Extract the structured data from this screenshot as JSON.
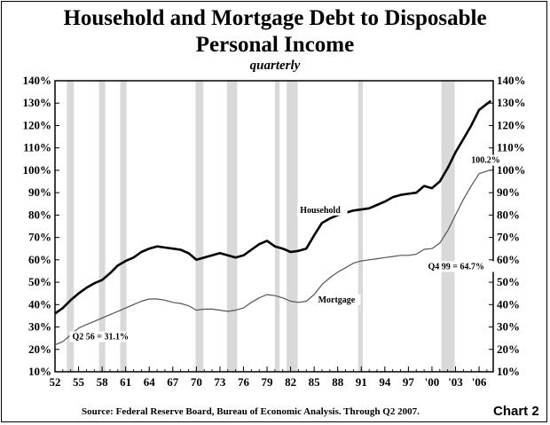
{
  "chart_data": {
    "type": "line",
    "title": "Household and Mortgage Debt to Disposable",
    "title_line2": "Personal Income",
    "subtitle": "quarterly",
    "source": "Source:  Federal Reserve Board, Bureau of Economic Analysis.  Through Q2 2007.",
    "chart_label": "Chart 2",
    "xlim": [
      1952,
      2007.8
    ],
    "ylim": [
      10,
      140
    ],
    "grid": false,
    "x_tick_labels": [
      {
        "x": 1952,
        "label": "52"
      },
      {
        "x": 1955,
        "label": "55"
      },
      {
        "x": 1958,
        "label": "58"
      },
      {
        "x": 1961,
        "label": "61"
      },
      {
        "x": 1964,
        "label": "64"
      },
      {
        "x": 1967,
        "label": "67"
      },
      {
        "x": 1970,
        "label": "70"
      },
      {
        "x": 1973,
        "label": "73"
      },
      {
        "x": 1976,
        "label": "76"
      },
      {
        "x": 1979,
        "label": "79"
      },
      {
        "x": 1982,
        "label": "82"
      },
      {
        "x": 1985,
        "label": "85"
      },
      {
        "x": 1988,
        "label": "88"
      },
      {
        "x": 1991,
        "label": "91"
      },
      {
        "x": 1994,
        "label": "94"
      },
      {
        "x": 1997,
        "label": "97"
      },
      {
        "x": 2000,
        "label": "'00"
      },
      {
        "x": 2003,
        "label": "'03"
      },
      {
        "x": 2006,
        "label": "'06"
      }
    ],
    "y_tick_labels": [
      "10%",
      "20%",
      "30%",
      "40%",
      "50%",
      "60%",
      "70%",
      "80%",
      "90%",
      "100%",
      "110%",
      "120%",
      "130%",
      "140%"
    ],
    "y_ticks": [
      10,
      20,
      30,
      40,
      50,
      60,
      70,
      80,
      90,
      100,
      110,
      120,
      130,
      140
    ],
    "recessions": [
      [
        1953.5,
        1954.4
      ],
      [
        1957.6,
        1958.4
      ],
      [
        1960.3,
        1961.1
      ],
      [
        1969.9,
        1970.9
      ],
      [
        1973.9,
        1975.2
      ],
      [
        1980.0,
        1980.6
      ],
      [
        1981.5,
        1982.9
      ],
      [
        1990.6,
        1991.2
      ],
      [
        2001.2,
        2002.9
      ]
    ],
    "series": [
      {
        "name": "Household",
        "color": "#000000",
        "x": [
          1952,
          1953,
          1954,
          1955,
          1956,
          1957,
          1958,
          1959,
          1960,
          1961,
          1962,
          1963,
          1964,
          1965,
          1966,
          1967,
          1968,
          1969,
          1970,
          1971,
          1972,
          1973,
          1974,
          1975,
          1976,
          1977,
          1978,
          1979,
          1980,
          1981,
          1982,
          1983,
          1984,
          1985,
          1986,
          1987,
          1988,
          1989,
          1990,
          1991,
          1992,
          1993,
          1994,
          1995,
          1996,
          1997,
          1998,
          1999,
          2000,
          2001,
          2002,
          2003,
          2004,
          2005,
          2006,
          2007.5
        ],
        "values": [
          36,
          38.5,
          42,
          45,
          47.5,
          49.5,
          51,
          54,
          57.5,
          59.5,
          61,
          63.5,
          65,
          66,
          65.5,
          65,
          64.5,
          63,
          60,
          61,
          62,
          63,
          62,
          61,
          62,
          64.5,
          67,
          68.5,
          66,
          65,
          63.5,
          64,
          65,
          71,
          76.5,
          78.5,
          80,
          81,
          82,
          82.5,
          83,
          84.5,
          86,
          88,
          89,
          89.5,
          90,
          93,
          92,
          95,
          101,
          108,
          114,
          120,
          127,
          131
        ]
      },
      {
        "name": "Mortgage",
        "color": "#555555",
        "x": [
          1952,
          1953,
          1954,
          1955,
          1956,
          1957,
          1958,
          1959,
          1960,
          1961,
          1962,
          1963,
          1964,
          1965,
          1966,
          1967,
          1968,
          1969,
          1970,
          1971,
          1972,
          1973,
          1974,
          1975,
          1976,
          1977,
          1978,
          1979,
          1980,
          1981,
          1982,
          1983,
          1984,
          1985,
          1986,
          1987,
          1988,
          1989,
          1990,
          1991,
          1992,
          1993,
          1994,
          1995,
          1996,
          1997,
          1998,
          1999,
          2000,
          2001,
          2002,
          2003,
          2004,
          2005,
          2006,
          2007.5
        ],
        "values": [
          22,
          23.5,
          26.5,
          29.5,
          31.1,
          32.5,
          34,
          35.5,
          37,
          38.5,
          40,
          41.5,
          42.5,
          42.5,
          42,
          41,
          40.5,
          39.5,
          37.5,
          38,
          38,
          37.5,
          37,
          37.5,
          38.5,
          41,
          43,
          44.5,
          44,
          43,
          41.5,
          41,
          41.5,
          44.5,
          49,
          52,
          54.5,
          56.5,
          58.5,
          59.5,
          60,
          60.5,
          61,
          61.5,
          62,
          62,
          62.5,
          64.7,
          65,
          67.5,
          73,
          80,
          87,
          93,
          98.5,
          100.2
        ]
      }
    ],
    "annotations": [
      {
        "text": "Household",
        "x": 1983.2,
        "y": 81
      },
      {
        "text": "Mortgage",
        "x": 1985.5,
        "y": 41
      },
      {
        "text": "100.2%",
        "x": 2005.0,
        "y": 103.3
      },
      {
        "text": "Q4 99 = 64.7%",
        "x": 1999.5,
        "y": 55.8
      },
      {
        "text": "Q2 56 = 31.1%",
        "x": 1954.2,
        "y": 24.5
      }
    ]
  }
}
